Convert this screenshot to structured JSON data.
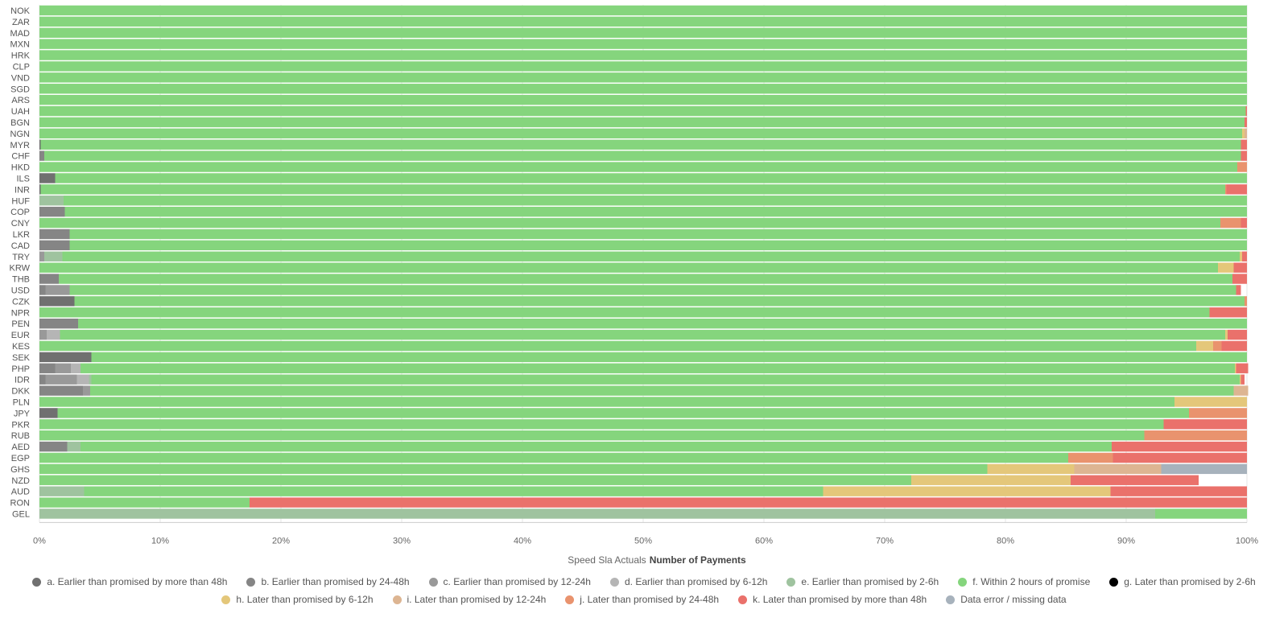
{
  "chart_data": {
    "type": "bar",
    "orientation": "horizontal",
    "stacked": "percent",
    "xlim": [
      0,
      100
    ],
    "x_ticks": [
      "0%",
      "10%",
      "20%",
      "30%",
      "40%",
      "50%",
      "60%",
      "70%",
      "80%",
      "90%",
      "100%"
    ],
    "xlabel_prefix": "Speed Sla Actuals",
    "xlabel_bold": "Number of Payments",
    "grid": true,
    "legend_position": "bottom",
    "categories": [
      "NOK",
      "ZAR",
      "MAD",
      "MXN",
      "HRK",
      "CLP",
      "VND",
      "SGD",
      "ARS",
      "UAH",
      "BGN",
      "NGN",
      "MYR",
      "CHF",
      "HKD",
      "ILS",
      "INR",
      "HUF",
      "COP",
      "CNY",
      "LKR",
      "CAD",
      "TRY",
      "KRW",
      "THB",
      "USD",
      "CZK",
      "NPR",
      "PEN",
      "EUR",
      "KES",
      "SEK",
      "PHP",
      "IDR",
      "DKK",
      "PLN",
      "JPY",
      "PKR",
      "RUB",
      "AED",
      "EGP",
      "GHS",
      "NZD",
      "AUD",
      "RON",
      "GEL"
    ],
    "series": [
      {
        "name": "a. Earlier than promised by more than 48h",
        "color": "#707070",
        "values": [
          0,
          0,
          0,
          0,
          0,
          0,
          0,
          0,
          0,
          0,
          0,
          0,
          0.1,
          0,
          0,
          1.3,
          0.1,
          0,
          0,
          0,
          0,
          0,
          0,
          0,
          0,
          0,
          2.9,
          0,
          0,
          0,
          0,
          4.3,
          0,
          0,
          0,
          0,
          1.5,
          0,
          0,
          0,
          0,
          0,
          0,
          0,
          0,
          0
        ]
      },
      {
        "name": "b. Earlier than promised by 24-48h",
        "color": "#858585",
        "values": [
          0,
          0,
          0,
          0,
          0,
          0,
          0,
          0,
          0,
          0,
          0,
          0,
          0,
          0.4,
          0,
          0,
          0,
          0,
          2.1,
          0,
          2.5,
          2.5,
          0,
          0,
          1.6,
          0.5,
          0,
          0,
          3.2,
          0,
          0,
          0,
          1.3,
          0.5,
          3.6,
          0,
          0,
          0,
          0,
          2.3,
          0,
          0,
          0,
          0,
          0,
          0
        ]
      },
      {
        "name": "c. Earlier than promised by 12-24h",
        "color": "#999999",
        "values": [
          0,
          0,
          0,
          0,
          0,
          0,
          0,
          0,
          0,
          0,
          0,
          0,
          0,
          0,
          0,
          0,
          0,
          0,
          0,
          0,
          0,
          0,
          0.4,
          0,
          0,
          2.0,
          0,
          0,
          0,
          0.6,
          0,
          0,
          1.3,
          2.6,
          0.6,
          0,
          0,
          0,
          0,
          0,
          0,
          0,
          0,
          0,
          0,
          0
        ]
      },
      {
        "name": "d. Earlier than promised by 6-12h",
        "color": "#b5b5b5",
        "values": [
          0,
          0,
          0,
          0,
          0,
          0,
          0,
          0,
          0,
          0,
          0,
          0,
          0,
          0,
          0,
          0,
          0,
          0,
          0,
          0,
          0,
          0,
          0,
          0,
          0,
          0,
          0,
          0,
          0,
          1.1,
          0,
          0,
          0.8,
          1.0,
          0,
          0,
          0,
          0,
          0,
          0,
          0,
          0,
          0,
          0,
          0,
          0
        ]
      },
      {
        "name": "e. Earlier than promised by 2-6h",
        "color": "#9fc39f",
        "values": [
          0,
          0,
          0,
          0,
          0,
          0,
          0,
          0,
          0,
          0,
          0,
          0,
          0,
          0,
          0,
          0,
          0,
          2.0,
          0,
          0,
          0,
          0,
          1.5,
          0,
          0,
          0,
          0,
          0,
          0,
          0,
          0,
          0,
          0,
          0.2,
          0,
          0,
          0,
          0,
          0,
          1.1,
          0,
          0,
          0,
          3.7,
          0,
          92.4
        ]
      },
      {
        "name": "f. Within 2 hours of promise",
        "color": "#85d57d",
        "values": [
          100,
          100,
          100,
          100,
          100,
          100,
          100,
          100,
          100,
          99.9,
          99.8,
          99.6,
          99.4,
          99.1,
          99.2,
          98.7,
          98.1,
          98.0,
          97.9,
          97.8,
          97.5,
          97.5,
          97.5,
          97.6,
          97.2,
          96.6,
          96.9,
          96.9,
          96.8,
          96.5,
          95.8,
          95.7,
          95.6,
          95.1,
          94.7,
          94.0,
          93.7,
          93.1,
          91.5,
          85.4,
          85.2,
          78.5,
          72.2,
          61.2,
          17.4,
          7.6
        ]
      },
      {
        "name": "g. Later than promised by 2-6h",
        "color": "#000000",
        "values": [
          0,
          0,
          0,
          0,
          0,
          0,
          0,
          0,
          0,
          0,
          0,
          0,
          0,
          0,
          0,
          0,
          0,
          0,
          0,
          0,
          0,
          0,
          0,
          0,
          0,
          0,
          0,
          0,
          0,
          0,
          0,
          0,
          0,
          0,
          0,
          0,
          0,
          0,
          0,
          0,
          0,
          0,
          0,
          0,
          0,
          0
        ]
      },
      {
        "name": "h. Later than promised by 6-12h",
        "color": "#e4c77a",
        "values": [
          0,
          0,
          0,
          0,
          0,
          0,
          0,
          0,
          0,
          0,
          0,
          0.2,
          0,
          0,
          0,
          0,
          0,
          0,
          0,
          0,
          0,
          0,
          0.2,
          1.3,
          0,
          0,
          0,
          0,
          0,
          0.2,
          1.4,
          0,
          0.1,
          0.1,
          0,
          6.0,
          0,
          0,
          0,
          0,
          0,
          7.2,
          13.2,
          23.8,
          0,
          0
        ]
      },
      {
        "name": "i. Later than promised by 12-24h",
        "color": "#ddb592",
        "values": [
          0,
          0,
          0,
          0,
          0,
          0,
          0,
          0,
          0,
          0,
          0,
          0.2,
          0,
          0,
          0,
          0,
          0,
          0,
          0,
          0,
          0,
          0,
          0,
          0,
          0,
          0,
          0,
          0,
          0,
          0,
          0,
          0,
          0,
          0,
          1.2,
          0,
          0,
          0,
          0,
          0,
          0,
          7.2,
          0,
          0,
          0,
          0
        ]
      },
      {
        "name": "j. Later than promised by 24-48h",
        "color": "#e9936e",
        "values": [
          0,
          0,
          0,
          0,
          0,
          0,
          0,
          0,
          0,
          0,
          0,
          0,
          0,
          0,
          0.8,
          0,
          0.1,
          0,
          0,
          1.7,
          0,
          0,
          0,
          0,
          0,
          0,
          0.2,
          0,
          0,
          0,
          0.7,
          0,
          0,
          0,
          0,
          0,
          4.8,
          0,
          8.5,
          0,
          3.7,
          0,
          0,
          0,
          0,
          0
        ]
      },
      {
        "name": "k. Later than promised by more than 48h",
        "color": "#ea716b",
        "values": [
          0,
          0,
          0,
          0,
          0,
          0,
          0,
          0,
          0,
          0.1,
          0.2,
          0,
          0.5,
          0.5,
          0,
          0,
          1.7,
          0,
          0,
          0.5,
          0,
          0,
          0.4,
          1.1,
          1.2,
          0.4,
          0,
          3.1,
          0,
          1.6,
          2.1,
          0,
          1.0,
          0.3,
          0,
          0,
          0,
          6.9,
          0,
          11.2,
          11.1,
          0,
          10.6,
          11.3,
          82.6,
          0
        ]
      },
      {
        "name": "Data error / missing data",
        "color": "#a7b2bc",
        "values": [
          0,
          0,
          0,
          0,
          0,
          0,
          0,
          0,
          0,
          0,
          0,
          0,
          0,
          0,
          0,
          0,
          0,
          0,
          0,
          0,
          0,
          0,
          0,
          0,
          0,
          0,
          0,
          0,
          0,
          0,
          0,
          0,
          0,
          0,
          0,
          0,
          0,
          0,
          0,
          0,
          0,
          7.1,
          0,
          0,
          0,
          0
        ]
      }
    ]
  }
}
